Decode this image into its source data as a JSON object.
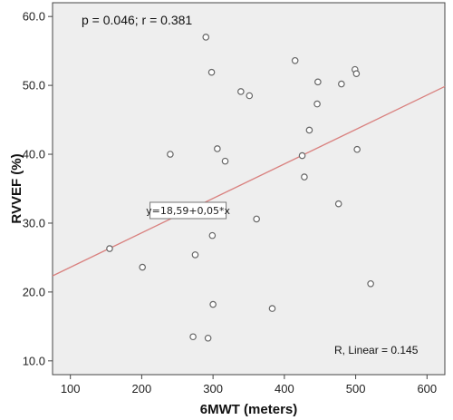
{
  "chart_data": {
    "type": "scatter",
    "xlabel": "6MWT (meters)",
    "ylabel": "RVVEF (%)",
    "xlim": [
      75,
      625
    ],
    "ylim": [
      8,
      62
    ],
    "xticks": [
      100,
      200,
      300,
      400,
      500,
      600
    ],
    "yticks": [
      10,
      20,
      30,
      40,
      50,
      60
    ],
    "xtick_labels": [
      "100",
      "200",
      "300",
      "400",
      "500",
      "600"
    ],
    "ytick_labels": [
      "10.0",
      "20.0",
      "30.0",
      "40.0",
      "50.0",
      "60.0"
    ],
    "grid": false,
    "annotation": "p = 0.046; r = 0.381",
    "r_squared_label": "R, Linear = 0.145",
    "equation_label": "y=18,59+0,05*x",
    "fit_line": {
      "intercept": 18.59,
      "slope": 0.05
    },
    "colors": {
      "plot_background": "#eeeeee",
      "point_stroke": "#666666",
      "fit_line": "#d9817f"
    },
    "points": [
      {
        "x": 155,
        "y": 26.3
      },
      {
        "x": 201,
        "y": 23.6
      },
      {
        "x": 240,
        "y": 40.0
      },
      {
        "x": 272,
        "y": 13.5
      },
      {
        "x": 275,
        "y": 25.4
      },
      {
        "x": 290,
        "y": 57.0
      },
      {
        "x": 293,
        "y": 13.3
      },
      {
        "x": 298,
        "y": 51.9
      },
      {
        "x": 299,
        "y": 28.2
      },
      {
        "x": 300,
        "y": 18.2
      },
      {
        "x": 306,
        "y": 40.8
      },
      {
        "x": 317,
        "y": 39.0
      },
      {
        "x": 339,
        "y": 49.1
      },
      {
        "x": 351,
        "y": 48.5
      },
      {
        "x": 361,
        "y": 30.6
      },
      {
        "x": 383,
        "y": 17.6
      },
      {
        "x": 415,
        "y": 53.6
      },
      {
        "x": 425,
        "y": 39.8
      },
      {
        "x": 428,
        "y": 36.7
      },
      {
        "x": 435,
        "y": 43.5
      },
      {
        "x": 446,
        "y": 47.3
      },
      {
        "x": 447,
        "y": 50.5
      },
      {
        "x": 476,
        "y": 32.8
      },
      {
        "x": 480,
        "y": 50.2
      },
      {
        "x": 499,
        "y": 52.3
      },
      {
        "x": 501,
        "y": 51.7
      },
      {
        "x": 502,
        "y": 40.7
      },
      {
        "x": 521,
        "y": 21.2
      }
    ]
  }
}
